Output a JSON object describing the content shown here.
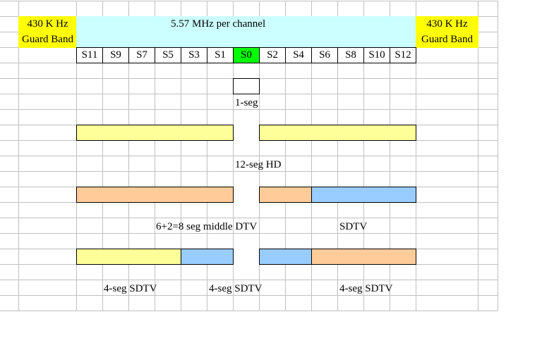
{
  "guard_band_left": {
    "line1": "430 K Hz",
    "line2": "Guard Band"
  },
  "guard_band_right": {
    "line1": "430 K Hz",
    "line2": "Guard Band"
  },
  "channel_label": "5.57 MHz per channel",
  "segments": [
    "S11",
    "S9",
    "S7",
    "S5",
    "S3",
    "S1",
    "S0",
    "S2",
    "S4",
    "S6",
    "S8",
    "S10",
    "S12"
  ],
  "active_segment": "S0",
  "labels": {
    "one_seg": "1-seg",
    "hd": "12-seg HD",
    "middle_dtv": "6+2=8 seg middle DTV",
    "sdtv": "SDTV",
    "sdtv4_a": "4-seg SDTV",
    "sdtv4_b": "4-seg SDTV",
    "sdtv4_c": "4-seg SDTV"
  },
  "colors": {
    "guard": "#FFFF00",
    "channel": "#CCFFFF",
    "active": "#00FF00",
    "hd": "#FFFF99",
    "middle": "#FFCC99",
    "sd": "#99CCFF"
  }
}
